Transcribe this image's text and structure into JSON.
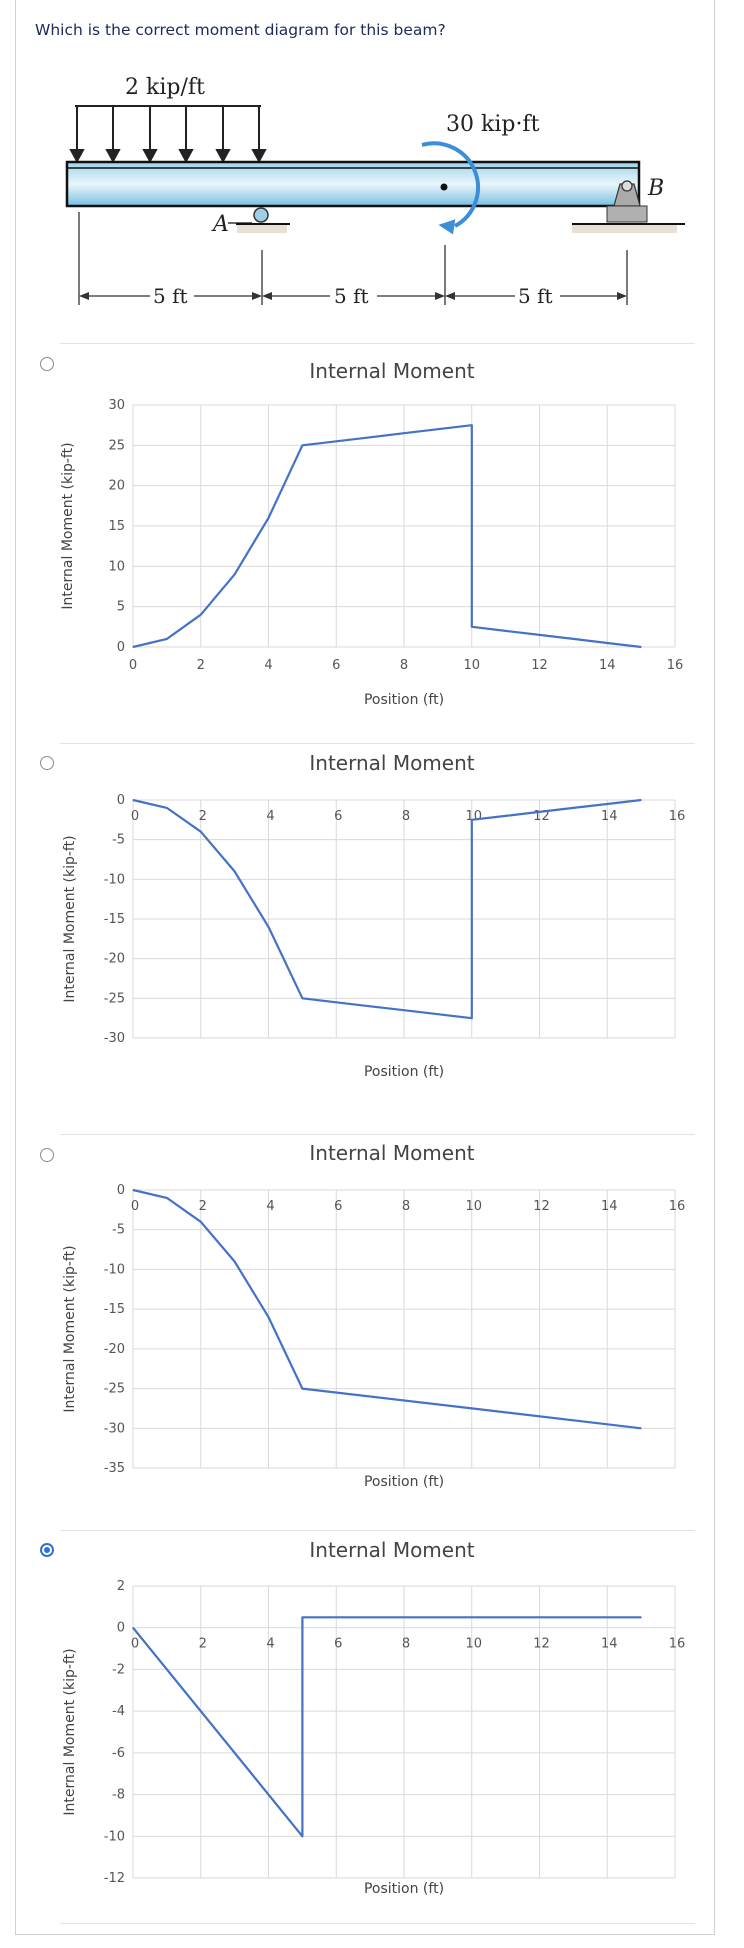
{
  "question": "Which is the correct moment diagram for this beam?",
  "beam": {
    "distributed_load": "2 kip/ft",
    "applied_moment": "30 kip·ft",
    "support_a": "A",
    "support_b": "B",
    "spans": [
      "5 ft",
      "5 ft",
      "5 ft"
    ]
  },
  "colors": {
    "line": "#4472c4",
    "grid": "#d9d9d9",
    "radio_selected": "#2f6fd6"
  },
  "options": [
    {
      "selected": false
    },
    {
      "selected": false
    },
    {
      "selected": false
    },
    {
      "selected": true
    }
  ],
  "chart_data": [
    {
      "type": "line",
      "title": "Internal Moment",
      "xlabel": "Position (ft)",
      "ylabel": "Internal Moment (kip-ft)",
      "xlim": [
        0,
        16
      ],
      "ylim": [
        0,
        30
      ],
      "x_ticks": [
        0,
        2,
        4,
        6,
        8,
        10,
        12,
        14,
        16
      ],
      "y_ticks": [
        0,
        5,
        10,
        15,
        20,
        25,
        30
      ],
      "xaxis_position": "bottom",
      "grid": true,
      "series": [
        {
          "x": [
            0,
            1,
            2,
            3,
            4,
            5,
            6,
            7,
            8,
            9,
            10,
            10,
            11,
            12,
            13,
            14,
            15
          ],
          "y": [
            0,
            1,
            4,
            9,
            16,
            25,
            25.5,
            26,
            26.5,
            27,
            27.5,
            2.5,
            2,
            1.5,
            1,
            0.5,
            0
          ]
        }
      ]
    },
    {
      "type": "line",
      "title": "Internal Moment",
      "xlabel": "Position (ft)",
      "ylabel": "Internal Moment (kip-ft)",
      "xlim": [
        0,
        16
      ],
      "ylim": [
        -30,
        0
      ],
      "x_ticks": [
        0,
        2,
        4,
        6,
        8,
        10,
        12,
        14,
        16
      ],
      "y_ticks": [
        0,
        -5,
        -10,
        -15,
        -20,
        -25,
        -30
      ],
      "xaxis_position": "top",
      "grid": true,
      "series": [
        {
          "x": [
            0,
            1,
            2,
            3,
            4,
            5,
            6,
            7,
            8,
            9,
            10,
            10,
            11,
            12,
            13,
            14,
            15
          ],
          "y": [
            0,
            -1,
            -4,
            -9,
            -16,
            -25,
            -25.5,
            -26,
            -26.5,
            -27,
            -27.5,
            -2.5,
            -2,
            -1.5,
            -1,
            -0.5,
            0
          ]
        }
      ]
    },
    {
      "type": "line",
      "title": "Internal Moment",
      "xlabel": "Position (ft)",
      "ylabel": "Internal Moment (kip-ft)",
      "xlim": [
        0,
        16
      ],
      "ylim": [
        -35,
        0
      ],
      "x_ticks": [
        0,
        2,
        4,
        6,
        8,
        10,
        12,
        14,
        16
      ],
      "y_ticks": [
        0,
        -5,
        -10,
        -15,
        -20,
        -25,
        -30,
        -35
      ],
      "xaxis_position": "top",
      "grid": true,
      "series": [
        {
          "x": [
            0,
            1,
            2,
            3,
            4,
            5,
            10,
            15
          ],
          "y": [
            0,
            -1,
            -4,
            -9,
            -16,
            -25,
            -27.5,
            -30
          ]
        }
      ]
    },
    {
      "type": "line",
      "title": "Internal Moment",
      "xlabel": "Position (ft)",
      "ylabel": "Internal Moment (kip-ft)",
      "xlim": [
        0,
        16
      ],
      "ylim": [
        -12,
        2
      ],
      "x_ticks": [
        0,
        2,
        4,
        6,
        8,
        10,
        12,
        14,
        16
      ],
      "y_ticks": [
        2,
        0,
        -2,
        -4,
        -6,
        -8,
        -10,
        -12
      ],
      "xaxis_position": "zero",
      "grid": true,
      "series": [
        {
          "x": [
            0,
            5,
            5,
            15
          ],
          "y": [
            0,
            -10,
            0.5,
            0.5
          ]
        }
      ]
    }
  ]
}
